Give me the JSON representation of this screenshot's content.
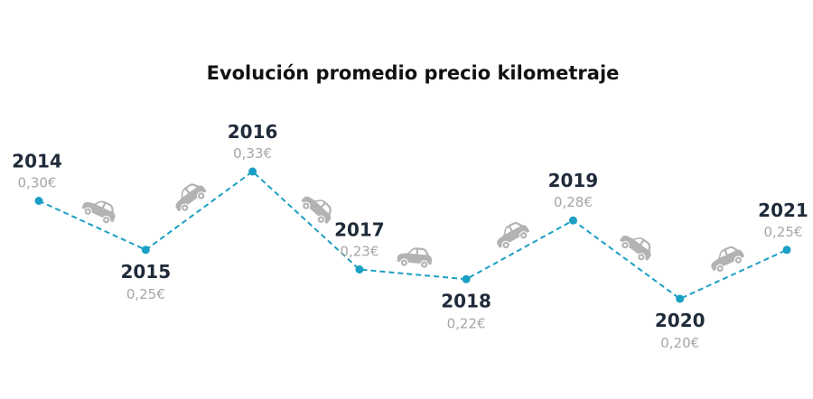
{
  "chart_data": {
    "type": "line",
    "title": "Evolución promedio precio kilometraje",
    "x": [
      "2014",
      "2015",
      "2016",
      "2017",
      "2018",
      "2019",
      "2020",
      "2021"
    ],
    "values": [
      0.3,
      0.25,
      0.33,
      0.23,
      0.22,
      0.28,
      0.2,
      0.25
    ],
    "value_labels": [
      "0,30€",
      "0,25€",
      "0,33€",
      "0,23€",
      "0,22€",
      "0,28€",
      "0,20€",
      "0,25€"
    ],
    "label_position": [
      "above",
      "below",
      "above",
      "above",
      "below",
      "above",
      "below",
      "above"
    ],
    "line_style": "dashed",
    "grid": false,
    "legend": "none",
    "colors": {
      "line": "#1b9fc4",
      "point": "#1b9fc4",
      "year_label": "#1f2b3a",
      "value_label": "#a6a6a6",
      "car_icon": "#b3b3b3",
      "title": "#111111"
    },
    "segment_icon": "car-icon"
  }
}
